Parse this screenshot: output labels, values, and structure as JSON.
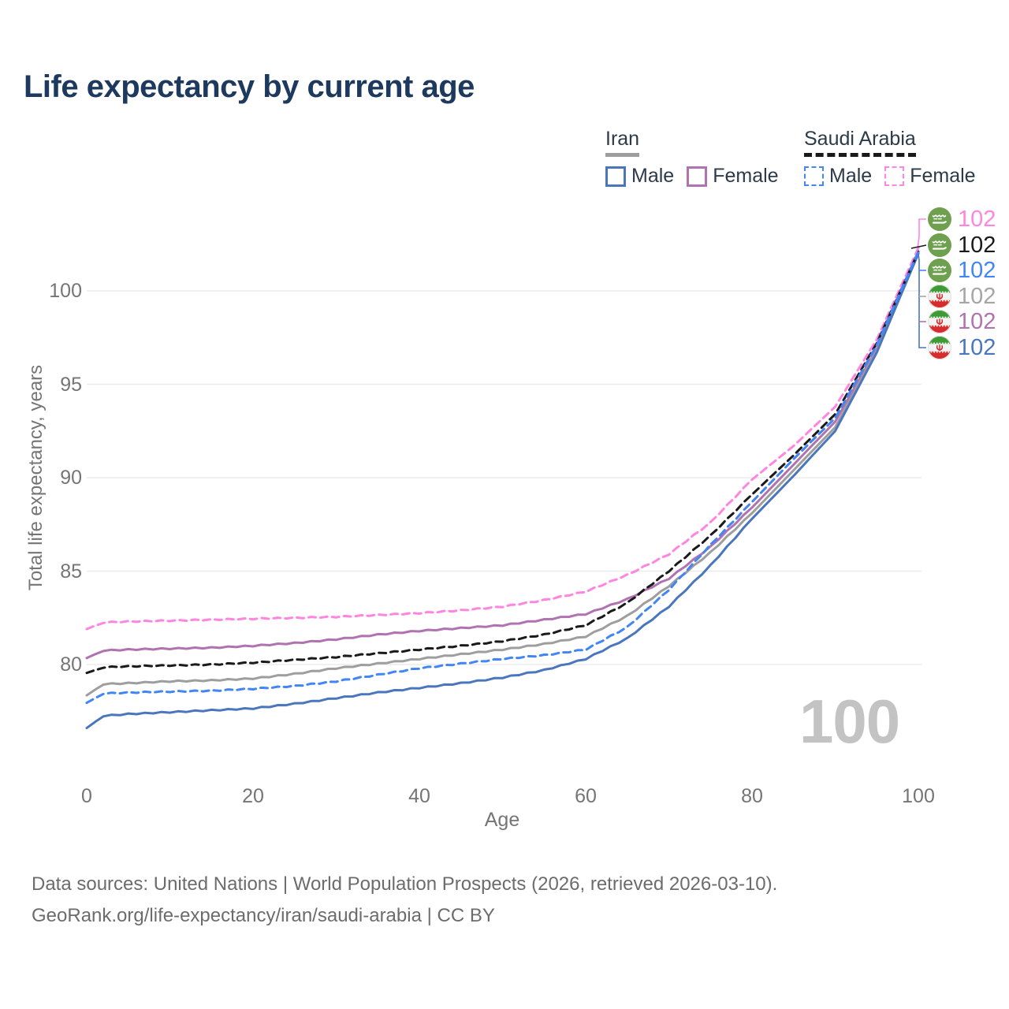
{
  "title": "Life expectancy by current age",
  "legend": {
    "iran": {
      "label": "Iran",
      "male": "Male",
      "female": "Female"
    },
    "saudi": {
      "label": "Saudi Arabia",
      "male": "Male",
      "female": "Female"
    }
  },
  "age_counter": "100",
  "end_labels": [
    {
      "flag": "saudi-arabia",
      "series": "Saudi Arabia Female",
      "value": "102",
      "color": "#ff85e0"
    },
    {
      "flag": "saudi-arabia",
      "series": "Saudi Arabia",
      "value": "102",
      "color": "#1a1a1a"
    },
    {
      "flag": "saudi-arabia",
      "series": "Saudi Arabia Male",
      "value": "102",
      "color": "#4285f4"
    },
    {
      "flag": "iran",
      "series": "Iran",
      "value": "102",
      "color": "#a6a6a6"
    },
    {
      "flag": "iran",
      "series": "Iran Female",
      "value": "102",
      "color": "#b172b1"
    },
    {
      "flag": "iran",
      "series": "Iran Male",
      "value": "102",
      "color": "#4a76be"
    }
  ],
  "footer": {
    "line1": "Data sources: United Nations | World Population Prospects (2026, retrieved 2026-03-10).",
    "line2": "GeoRank.org/life-expectancy/iran/saudi-arabia | CC BY"
  },
  "colors": {
    "title": "#1d3a5e",
    "axis_text": "#757575",
    "grid": "#ebebeb",
    "watermark": "#c3c3c3",
    "legend_text": "#2c3b49",
    "footer_text": "#6c6c6c",
    "iran_male": "#4a76be",
    "iran_female": "#b172b1",
    "iran_both": "#9e9e9e",
    "saudi_male": "#4285f4",
    "saudi_female": "#ff85e0",
    "saudi_both": "#1a1a1a"
  },
  "chart_data": {
    "type": "line",
    "title": "Life expectancy by current age",
    "xlabel": "Age",
    "ylabel": "Total life expectancy, years",
    "x_ticks": [
      0,
      20,
      40,
      60,
      80,
      100
    ],
    "y_ticks": [
      80,
      85,
      90,
      95,
      100
    ],
    "xlim": [
      0,
      100
    ],
    "ylim": [
      76,
      103
    ],
    "grid": "horizontal",
    "legend_position": "top-right",
    "x": [
      0,
      2,
      5,
      10,
      15,
      20,
      25,
      30,
      35,
      40,
      45,
      50,
      55,
      60,
      65,
      70,
      75,
      80,
      85,
      90,
      95,
      100
    ],
    "series": [
      {
        "name": "Saudi Arabia Female",
        "country": "Saudi Arabia",
        "sex": "Female",
        "style": "dashed",
        "color": "#ff85e0",
        "values": [
          81.9,
          82.25,
          82.3,
          82.35,
          82.4,
          82.45,
          82.5,
          82.55,
          82.65,
          82.75,
          82.9,
          83.1,
          83.45,
          83.9,
          84.8,
          85.9,
          87.6,
          89.9,
          91.7,
          93.8,
          97.4,
          102.3
        ]
      },
      {
        "name": "Saudi Arabia",
        "country": "Saudi Arabia",
        "sex": "Both",
        "style": "dashed",
        "color": "#1a1a1a",
        "values": [
          79.55,
          79.85,
          79.9,
          79.95,
          80.0,
          80.1,
          80.25,
          80.4,
          80.6,
          80.8,
          81.0,
          81.25,
          81.6,
          82.1,
          83.3,
          85.0,
          86.9,
          89.1,
          91.2,
          93.4,
          97.2,
          102.1
        ]
      },
      {
        "name": "Saudi Arabia Male",
        "country": "Saudi Arabia",
        "sex": "Male",
        "style": "dashed",
        "color": "#4285f4",
        "values": [
          77.95,
          78.45,
          78.5,
          78.55,
          78.6,
          78.7,
          78.85,
          79.1,
          79.45,
          79.8,
          80.05,
          80.3,
          80.5,
          80.8,
          82.0,
          84.0,
          86.4,
          88.7,
          91.0,
          93.2,
          97.1,
          102.1
        ]
      },
      {
        "name": "Iran Female",
        "country": "Iran",
        "sex": "Female",
        "style": "solid",
        "color": "#b172b1",
        "values": [
          80.35,
          80.75,
          80.8,
          80.85,
          80.9,
          81.0,
          81.15,
          81.35,
          81.6,
          81.8,
          81.95,
          82.1,
          82.4,
          82.7,
          83.5,
          84.6,
          86.3,
          88.4,
          90.7,
          93.0,
          96.9,
          102.0
        ]
      },
      {
        "name": "Iran",
        "country": "Iran",
        "sex": "Both",
        "style": "solid",
        "color": "#9e9e9e",
        "values": [
          78.35,
          78.95,
          79.0,
          79.1,
          79.15,
          79.25,
          79.5,
          79.8,
          80.05,
          80.3,
          80.55,
          80.8,
          81.1,
          81.5,
          82.6,
          84.2,
          86.0,
          88.1,
          90.4,
          92.7,
          96.8,
          102.0
        ]
      },
      {
        "name": "Iran Male",
        "country": "Iran",
        "sex": "Male",
        "style": "solid",
        "color": "#4a76be",
        "values": [
          76.6,
          77.25,
          77.35,
          77.45,
          77.55,
          77.65,
          77.9,
          78.2,
          78.5,
          78.75,
          79.0,
          79.3,
          79.7,
          80.3,
          81.4,
          83.1,
          85.3,
          87.8,
          90.1,
          92.5,
          96.7,
          102.0
        ]
      }
    ]
  }
}
